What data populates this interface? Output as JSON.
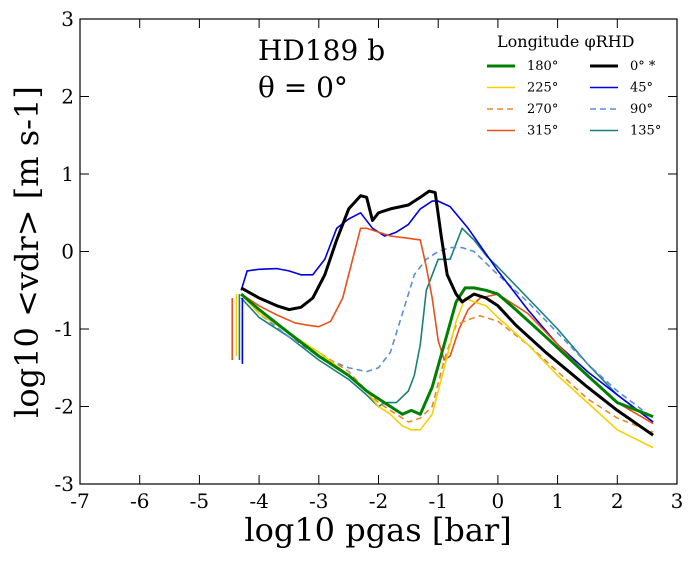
{
  "chart_data": {
    "type": "line",
    "xlabel": "log10 pgas [bar]",
    "ylabel": "log10 <vdr> [m s-1]",
    "xlim": [
      -7,
      3
    ],
    "ylim": [
      -3,
      3
    ],
    "x_ticks": [
      -7,
      -6,
      -5,
      -4,
      -3,
      -2,
      -1,
      0,
      1,
      2,
      3
    ],
    "y_ticks": [
      -3,
      -2,
      -1,
      0,
      1,
      2,
      3
    ],
    "x_tick_labels": [
      "-7",
      "-6",
      "-5",
      "-4",
      "-3",
      "-2",
      "-1",
      "0",
      "1",
      "2",
      "3"
    ],
    "y_tick_labels": [
      "-3",
      "-2",
      "-1",
      "0",
      "1",
      "2",
      "3"
    ],
    "grid": false,
    "annotations": {
      "planet": "HD189 b",
      "theta": "θ = 0°"
    },
    "legend": {
      "title": "Longitude φRHD",
      "placement": "top-right"
    },
    "series": [
      {
        "name": "180°",
        "color": "#008000",
        "width": 3,
        "dash": "",
        "x": [
          -4.3,
          -4.0,
          -3.5,
          -3.0,
          -2.5,
          -2.2,
          -2.0,
          -1.8,
          -1.6,
          -1.45,
          -1.3,
          -1.1,
          -0.9,
          -0.7,
          -0.55,
          -0.4,
          -0.2,
          0.0,
          0.3,
          0.8,
          1.5,
          2.0,
          2.6
        ],
        "y": [
          -0.55,
          -0.75,
          -1.05,
          -1.35,
          -1.6,
          -1.8,
          -1.9,
          -2.0,
          -2.1,
          -2.05,
          -2.1,
          -1.75,
          -1.2,
          -0.65,
          -0.47,
          -0.47,
          -0.5,
          -0.55,
          -0.75,
          -1.1,
          -1.6,
          -1.95,
          -2.13
        ]
      },
      {
        "name": "225°",
        "color": "#f5d000",
        "width": 1.6,
        "dash": "",
        "x": [
          -4.3,
          -4.0,
          -3.5,
          -3.0,
          -2.5,
          -2.2,
          -2.0,
          -1.8,
          -1.6,
          -1.45,
          -1.3,
          -1.1,
          -0.9,
          -0.7,
          -0.55,
          -0.4,
          -0.2,
          0.0,
          0.5,
          1.0,
          1.5,
          2.0,
          2.6
        ],
        "y": [
          -0.55,
          -0.8,
          -1.05,
          -1.3,
          -1.6,
          -1.8,
          -2.0,
          -2.1,
          -2.25,
          -2.3,
          -2.3,
          -2.1,
          -1.5,
          -0.9,
          -0.6,
          -0.65,
          -0.7,
          -0.85,
          -1.2,
          -1.6,
          -1.95,
          -2.3,
          -2.53
        ]
      },
      {
        "name": "270°",
        "color": "#e68a2e",
        "width": 1.6,
        "dash": "6,4",
        "x": [
          -4.3,
          -4.0,
          -3.5,
          -3.0,
          -2.5,
          -2.2,
          -2.0,
          -1.8,
          -1.5,
          -1.3,
          -1.1,
          -0.9,
          -0.7,
          -0.5,
          -0.3,
          0.0,
          0.5,
          1.0,
          1.5,
          2.0,
          2.6
        ],
        "y": [
          -0.55,
          -0.8,
          -1.05,
          -1.3,
          -1.55,
          -1.8,
          -1.95,
          -2.05,
          -2.2,
          -2.15,
          -2.0,
          -1.4,
          -0.95,
          -0.88,
          -0.83,
          -0.9,
          -1.2,
          -1.55,
          -1.9,
          -2.15,
          -2.33
        ]
      },
      {
        "name": "315°",
        "color": "#e8501a",
        "width": 1.6,
        "dash": "",
        "x": [
          -4.3,
          -4.0,
          -3.7,
          -3.4,
          -3.2,
          -3.0,
          -2.8,
          -2.6,
          -2.4,
          -2.3,
          -2.2,
          -2.0,
          -1.8,
          -1.5,
          -1.3,
          -1.2,
          -1.1,
          -1.0,
          -0.9,
          -0.8,
          -0.65,
          -0.5,
          -0.3,
          0.0,
          0.5,
          1.0,
          1.5,
          2.0,
          2.6
        ],
        "y": [
          -0.55,
          -0.7,
          -0.82,
          -0.92,
          -0.95,
          -0.97,
          -0.9,
          -0.6,
          0.0,
          0.3,
          0.3,
          0.25,
          0.2,
          0.17,
          0.15,
          -0.2,
          -0.6,
          -1.15,
          -1.4,
          -1.35,
          -1.0,
          -0.75,
          -0.6,
          -0.55,
          -0.8,
          -1.2,
          -1.6,
          -1.95,
          -2.22
        ]
      },
      {
        "name": "0° *",
        "color": "#000000",
        "width": 3,
        "dash": "",
        "x": [
          -4.3,
          -4.0,
          -3.7,
          -3.5,
          -3.3,
          -3.1,
          -2.9,
          -2.7,
          -2.5,
          -2.3,
          -2.2,
          -2.1,
          -2.0,
          -1.8,
          -1.5,
          -1.3,
          -1.15,
          -1.05,
          -0.95,
          -0.85,
          -0.7,
          -0.6,
          -0.5,
          -0.4,
          -0.2,
          0.0,
          0.3,
          0.8,
          1.5,
          2.0,
          2.6
        ],
        "y": [
          -0.47,
          -0.6,
          -0.7,
          -0.75,
          -0.72,
          -0.6,
          -0.3,
          0.15,
          0.55,
          0.72,
          0.7,
          0.4,
          0.5,
          0.55,
          0.6,
          0.7,
          0.78,
          0.76,
          0.2,
          -0.3,
          -0.55,
          -0.65,
          -0.6,
          -0.55,
          -0.6,
          -0.7,
          -0.95,
          -1.3,
          -1.75,
          -2.05,
          -2.37
        ]
      },
      {
        "name": "45°",
        "color": "#0000e0",
        "width": 1.6,
        "dash": "",
        "x": [
          -4.3,
          -4.2,
          -4.0,
          -3.7,
          -3.5,
          -3.3,
          -3.1,
          -2.9,
          -2.7,
          -2.5,
          -2.3,
          -2.1,
          -2.0,
          -1.9,
          -1.8,
          -1.7,
          -1.5,
          -1.3,
          -1.1,
          -1.0,
          -0.8,
          -0.5,
          0.0,
          0.5,
          1.0,
          1.5,
          2.0,
          2.6
        ],
        "y": [
          -0.5,
          -0.25,
          -0.23,
          -0.22,
          -0.25,
          -0.3,
          -0.3,
          -0.1,
          0.3,
          0.42,
          0.5,
          0.3,
          0.25,
          0.2,
          0.22,
          0.25,
          0.35,
          0.55,
          0.65,
          0.65,
          0.58,
          0.3,
          -0.25,
          -0.75,
          -1.2,
          -1.55,
          -1.85,
          -2.2
        ]
      },
      {
        "name": "90°",
        "color": "#5a8fd8",
        "width": 1.6,
        "dash": "6,4",
        "x": [
          -4.3,
          -4.0,
          -3.5,
          -3.0,
          -2.5,
          -2.2,
          -2.0,
          -1.8,
          -1.6,
          -1.4,
          -1.2,
          -1.0,
          -0.8,
          -0.6,
          -0.4,
          -0.2,
          0.0,
          0.5,
          1.0,
          1.5,
          2.0,
          2.6
        ],
        "y": [
          -0.55,
          -0.8,
          -1.1,
          -1.35,
          -1.5,
          -1.55,
          -1.5,
          -1.3,
          -0.8,
          -0.3,
          -0.1,
          0.0,
          0.05,
          0.05,
          0.0,
          -0.15,
          -0.3,
          -0.65,
          -1.05,
          -1.45,
          -1.8,
          -2.15
        ]
      },
      {
        "name": "135°",
        "color": "#1a7f7a",
        "width": 1.6,
        "dash": "",
        "x": [
          -4.3,
          -4.0,
          -3.5,
          -3.0,
          -2.5,
          -2.2,
          -2.0,
          -1.9,
          -1.7,
          -1.5,
          -1.4,
          -1.3,
          -1.2,
          -1.0,
          -0.8,
          -0.6,
          -0.4,
          -0.2,
          0.0,
          0.5,
          1.0,
          1.5,
          2.0,
          2.6
        ],
        "y": [
          -0.6,
          -0.85,
          -1.1,
          -1.4,
          -1.65,
          -1.85,
          -2.0,
          -1.95,
          -1.95,
          -1.8,
          -1.6,
          -1.2,
          -0.5,
          -0.1,
          -0.1,
          0.3,
          0.15,
          -0.05,
          -0.2,
          -0.6,
          -1.0,
          -1.45,
          -1.85,
          -2.2
        ]
      }
    ]
  }
}
